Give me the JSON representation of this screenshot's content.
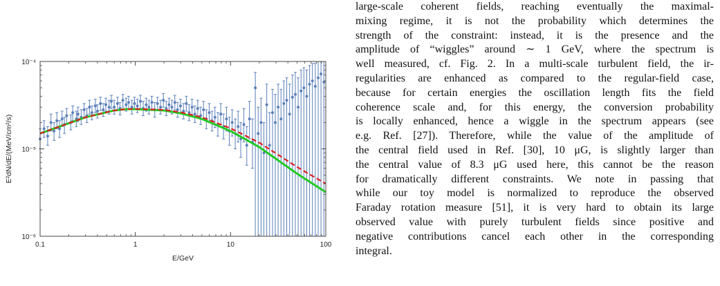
{
  "figure": {
    "chart_data": {
      "type": "scatter",
      "xlabel": "E/GeV",
      "ylabel": "E²dN/dE/(MeV/cm²/s)",
      "xscale": "log",
      "yscale": "log",
      "xlim": [
        0.1,
        100
      ],
      "ylim": [
        1e-06,
        0.0001
      ],
      "x_ticks": [
        0.1,
        1,
        10,
        100
      ],
      "x_tick_labels": [
        "0.1",
        "1",
        "10",
        "100"
      ],
      "y_ticks": [
        1e-06,
        1e-05,
        0.0001
      ],
      "y_tick_labels": [
        "10⁻⁶",
        "10⁻⁵",
        "10⁻⁴"
      ],
      "grid": false,
      "legend": "none",
      "colors": {
        "points": "#5a7fb8",
        "green_curve": "#22c922",
        "red_curve": "#dd2020",
        "axes": "#444444"
      },
      "curves": [
        {
          "style": "solid-green",
          "x": [
            0.1,
            0.3,
            0.6,
            0.8,
            1.0,
            2.0,
            3.0,
            5.0,
            10,
            20,
            50,
            100
          ],
          "y": [
            1.5e-05,
            2.3e-05,
            2.75e-05,
            2.85e-05,
            2.85e-05,
            2.75e-05,
            2.55e-05,
            2.2e-05,
            1.6e-05,
            1.05e-05,
            5.2e-06,
            3.2e-06
          ]
        },
        {
          "style": "dashed-red",
          "x": [
            0.1,
            0.3,
            0.6,
            0.8,
            1.0,
            2.0,
            3.0,
            5.0,
            10,
            20,
            50,
            100
          ],
          "y": [
            1.5e-05,
            2.3e-05,
            2.75e-05,
            2.85e-05,
            2.87e-05,
            2.8e-05,
            2.62e-05,
            2.3e-05,
            1.72e-05,
            1.18e-05,
            6.2e-06,
            4e-06
          ]
        }
      ],
      "points": [
        {
          "x": 0.1,
          "y": 1.3e-05,
          "lo": 1e-05,
          "hi": 1.7e-05
        },
        {
          "x": 0.11,
          "y": 1.7e-05,
          "lo": 1.35e-05,
          "hi": 2.1e-05
        },
        {
          "x": 0.12,
          "y": 1.4e-05,
          "lo": 1.1e-05,
          "hi": 1.8e-05
        },
        {
          "x": 0.13,
          "y": 2e-05,
          "lo": 1.6e-05,
          "hi": 2.5e-05
        },
        {
          "x": 0.14,
          "y": 1.6e-05,
          "lo": 1.25e-05,
          "hi": 2e-05
        },
        {
          "x": 0.15,
          "y": 2.1e-05,
          "lo": 1.7e-05,
          "hi": 2.6e-05
        },
        {
          "x": 0.16,
          "y": 1.7e-05,
          "lo": 1.35e-05,
          "hi": 2.1e-05
        },
        {
          "x": 0.17,
          "y": 2.2e-05,
          "lo": 1.8e-05,
          "hi": 2.7e-05
        },
        {
          "x": 0.18,
          "y": 1.9e-05,
          "lo": 1.5e-05,
          "hi": 2.3e-05
        },
        {
          "x": 0.19,
          "y": 2.4e-05,
          "lo": 1.95e-05,
          "hi": 2.9e-05
        },
        {
          "x": 0.21,
          "y": 2e-05,
          "lo": 1.65e-05,
          "hi": 2.45e-05
        },
        {
          "x": 0.22,
          "y": 2.6e-05,
          "lo": 2.1e-05,
          "hi": 3.1e-05
        },
        {
          "x": 0.24,
          "y": 2.2e-05,
          "lo": 1.8e-05,
          "hi": 2.7e-05
        },
        {
          "x": 0.25,
          "y": 2.5e-05,
          "lo": 2.05e-05,
          "hi": 3e-05
        },
        {
          "x": 0.27,
          "y": 2.3e-05,
          "lo": 1.9e-05,
          "hi": 2.8e-05
        },
        {
          "x": 0.29,
          "y": 2.8e-05,
          "lo": 2.3e-05,
          "hi": 3.3e-05
        },
        {
          "x": 0.31,
          "y": 2.4e-05,
          "lo": 2e-05,
          "hi": 2.9e-05
        },
        {
          "x": 0.33,
          "y": 3e-05,
          "lo": 2.5e-05,
          "hi": 3.6e-05
        },
        {
          "x": 0.35,
          "y": 2.6e-05,
          "lo": 2.15e-05,
          "hi": 3.1e-05
        },
        {
          "x": 0.38,
          "y": 3.1e-05,
          "lo": 2.6e-05,
          "hi": 3.7e-05
        },
        {
          "x": 0.4,
          "y": 2.7e-05,
          "lo": 2.25e-05,
          "hi": 3.2e-05
        },
        {
          "x": 0.43,
          "y": 3.3e-05,
          "lo": 2.75e-05,
          "hi": 3.9e-05
        },
        {
          "x": 0.46,
          "y": 2.8e-05,
          "lo": 2.35e-05,
          "hi": 3.3e-05
        },
        {
          "x": 0.49,
          "y": 3.2e-05,
          "lo": 2.7e-05,
          "hi": 3.8e-05
        },
        {
          "x": 0.53,
          "y": 3e-05,
          "lo": 2.5e-05,
          "hi": 3.6e-05
        },
        {
          "x": 0.56,
          "y": 3.5e-05,
          "lo": 2.9e-05,
          "hi": 4.1e-05
        },
        {
          "x": 0.6,
          "y": 3e-05,
          "lo": 2.5e-05,
          "hi": 3.6e-05
        },
        {
          "x": 0.65,
          "y": 3.3e-05,
          "lo": 2.8e-05,
          "hi": 3.9e-05
        },
        {
          "x": 0.69,
          "y": 2.9e-05,
          "lo": 2.45e-05,
          "hi": 3.4e-05
        },
        {
          "x": 0.74,
          "y": 3.6e-05,
          "lo": 3e-05,
          "hi": 4.2e-05
        },
        {
          "x": 0.8,
          "y": 3.2e-05,
          "lo": 2.7e-05,
          "hi": 3.8e-05
        },
        {
          "x": 0.85,
          "y": 3.4e-05,
          "lo": 2.85e-05,
          "hi": 4e-05
        },
        {
          "x": 0.92,
          "y": 3e-05,
          "lo": 2.5e-05,
          "hi": 3.6e-05
        },
        {
          "x": 0.98,
          "y": 3.3e-05,
          "lo": 2.8e-05,
          "hi": 3.9e-05
        },
        {
          "x": 1.05,
          "y": 3.1e-05,
          "lo": 2.6e-05,
          "hi": 3.7e-05
        },
        {
          "x": 1.13,
          "y": 3.5e-05,
          "lo": 2.9e-05,
          "hi": 4.1e-05
        },
        {
          "x": 1.21,
          "y": 2.9e-05,
          "lo": 2.4e-05,
          "hi": 3.5e-05
        },
        {
          "x": 1.3,
          "y": 3.2e-05,
          "lo": 2.7e-05,
          "hi": 3.8e-05
        },
        {
          "x": 1.39,
          "y": 3e-05,
          "lo": 2.5e-05,
          "hi": 3.6e-05
        },
        {
          "x": 1.49,
          "y": 3.4e-05,
          "lo": 2.8e-05,
          "hi": 4e-05
        },
        {
          "x": 1.6,
          "y": 2.8e-05,
          "lo": 2.3e-05,
          "hi": 3.4e-05
        },
        {
          "x": 1.71,
          "y": 3.3e-05,
          "lo": 2.75e-05,
          "hi": 3.9e-05
        },
        {
          "x": 1.84,
          "y": 3e-05,
          "lo": 2.5e-05,
          "hi": 3.6e-05
        },
        {
          "x": 1.97,
          "y": 3.6e-05,
          "lo": 3e-05,
          "hi": 4.3e-05
        },
        {
          "x": 2.11,
          "y": 2.9e-05,
          "lo": 2.4e-05,
          "hi": 3.5e-05
        },
        {
          "x": 2.26,
          "y": 3.2e-05,
          "lo": 2.65e-05,
          "hi": 3.8e-05
        },
        {
          "x": 2.42,
          "y": 3e-05,
          "lo": 2.5e-05,
          "hi": 3.6e-05
        },
        {
          "x": 2.6,
          "y": 3.4e-05,
          "lo": 2.8e-05,
          "hi": 4.1e-05
        },
        {
          "x": 2.78,
          "y": 2.8e-05,
          "lo": 2.3e-05,
          "hi": 3.4e-05
        },
        {
          "x": 2.98,
          "y": 3.1e-05,
          "lo": 2.55e-05,
          "hi": 3.7e-05
        },
        {
          "x": 3.2,
          "y": 2.7e-05,
          "lo": 2.2e-05,
          "hi": 3.3e-05
        },
        {
          "x": 3.43,
          "y": 3.3e-05,
          "lo": 2.7e-05,
          "hi": 4e-05
        },
        {
          "x": 3.67,
          "y": 2.6e-05,
          "lo": 2.1e-05,
          "hi": 3.2e-05
        },
        {
          "x": 3.94,
          "y": 3e-05,
          "lo": 2.45e-05,
          "hi": 3.7e-05
        },
        {
          "x": 4.22,
          "y": 2.5e-05,
          "lo": 2e-05,
          "hi": 3.1e-05
        },
        {
          "x": 4.52,
          "y": 2.9e-05,
          "lo": 2.35e-05,
          "hi": 3.6e-05
        },
        {
          "x": 4.85,
          "y": 2.4e-05,
          "lo": 1.9e-05,
          "hi": 3e-05
        },
        {
          "x": 5.2,
          "y": 2.8e-05,
          "lo": 2.2e-05,
          "hi": 3.5e-05
        },
        {
          "x": 5.57,
          "y": 2.2e-05,
          "lo": 1.7e-05,
          "hi": 2.8e-05
        },
        {
          "x": 5.97,
          "y": 2.6e-05,
          "lo": 2e-05,
          "hi": 3.3e-05
        },
        {
          "x": 6.4,
          "y": 2.1e-05,
          "lo": 1.6e-05,
          "hi": 2.7e-05
        },
        {
          "x": 6.86,
          "y": 2.3e-05,
          "lo": 1.75e-05,
          "hi": 3e-05
        },
        {
          "x": 7.36,
          "y": 1.9e-05,
          "lo": 1.4e-05,
          "hi": 2.6e-05
        },
        {
          "x": 7.89,
          "y": 2.5e-05,
          "lo": 1.9e-05,
          "hi": 3.3e-05
        },
        {
          "x": 8.45,
          "y": 1.8e-05,
          "lo": 1.3e-05,
          "hi": 2.5e-05
        },
        {
          "x": 9.06,
          "y": 2.2e-05,
          "lo": 1.6e-05,
          "hi": 3e-05
        },
        {
          "x": 9.71,
          "y": 1.6e-05,
          "lo": 1.1e-05,
          "hi": 2.3e-05
        },
        {
          "x": 10.4,
          "y": 2e-05,
          "lo": 1.4e-05,
          "hi": 2.8e-05
        },
        {
          "x": 11.2,
          "y": 1.5e-05,
          "lo": 1e-05,
          "hi": 2.2e-05
        },
        {
          "x": 12.0,
          "y": 1.8e-05,
          "lo": 1.2e-05,
          "hi": 2.7e-05
        },
        {
          "x": 12.8,
          "y": 1.3e-05,
          "lo": 8e-06,
          "hi": 2e-05
        },
        {
          "x": 13.8,
          "y": 1.9e-05,
          "lo": 1.2e-05,
          "hi": 2.9e-05
        },
        {
          "x": 14.8,
          "y": 1.1e-05,
          "lo": 6.5e-06,
          "hi": 1.8e-05
        },
        {
          "x": 15.8,
          "y": 2.2e-05,
          "lo": 1.3e-05,
          "hi": 3.5e-05
        },
        {
          "x": 17.0,
          "y": 1.2e-05,
          "lo": 6e-06,
          "hi": 2.2e-05
        },
        {
          "x": 18.2,
          "y": 5e-05,
          "lo": 1e-06,
          "hi": 7.5e-05
        },
        {
          "x": 19.5,
          "y": 1.5e-05,
          "lo": 1e-06,
          "hi": 3e-05
        },
        {
          "x": 20.9,
          "y": 2e-05,
          "lo": 1e-06,
          "hi": 3.8e-05
        },
        {
          "x": 22.4,
          "y": 9e-06,
          "lo": 1e-06,
          "hi": 2e-05
        },
        {
          "x": 24.0,
          "y": 3.2e-05,
          "lo": 1e-06,
          "hi": 5.5e-05
        },
        {
          "x": 25.7,
          "y": 1.1e-05,
          "lo": 1e-06,
          "hi": 2.6e-05
        },
        {
          "x": 27.6,
          "y": 2.6e-05,
          "lo": 1e-06,
          "hi": 4.8e-05
        },
        {
          "x": 29.5,
          "y": 2e-05,
          "lo": 1e-06,
          "hi": 4.2e-05
        },
        {
          "x": 31.6,
          "y": 3e-05,
          "lo": 1e-06,
          "hi": 5.5e-05
        },
        {
          "x": 33.9,
          "y": 2.2e-05,
          "lo": 1e-06,
          "hi": 4.8e-05
        },
        {
          "x": 36.3,
          "y": 3.3e-05,
          "lo": 1e-06,
          "hi": 6e-05
        },
        {
          "x": 38.9,
          "y": 3.6e-05,
          "lo": 1e-06,
          "hi": 6.5e-05
        },
        {
          "x": 41.7,
          "y": 2.5e-05,
          "lo": 1e-06,
          "hi": 5.5e-05
        },
        {
          "x": 44.7,
          "y": 3.9e-05,
          "lo": 1e-06,
          "hi": 7e-05
        },
        {
          "x": 47.9,
          "y": 4.2e-05,
          "lo": 1e-06,
          "hi": 7.5e-05
        },
        {
          "x": 51.3,
          "y": 3e-05,
          "lo": 1e-06,
          "hi": 6.5e-05
        },
        {
          "x": 55.0,
          "y": 4.6e-05,
          "lo": 1e-06,
          "hi": 8e-05
        },
        {
          "x": 58.9,
          "y": 5e-05,
          "lo": 1e-06,
          "hi": 8.5e-05
        },
        {
          "x": 63.1,
          "y": 4e-05,
          "lo": 1e-06,
          "hi": 8e-05
        },
        {
          "x": 67.6,
          "y": 5.5e-05,
          "lo": 1e-06,
          "hi": 9e-05
        },
        {
          "x": 72.4,
          "y": 6e-05,
          "lo": 1e-06,
          "hi": 9.5e-05
        },
        {
          "x": 77.6,
          "y": 5.2e-05,
          "lo": 1e-06,
          "hi": 9.5e-05
        },
        {
          "x": 83.2,
          "y": 6.5e-05,
          "lo": 1e-06,
          "hi": 0.0001
        },
        {
          "x": 89.1,
          "y": 7.2e-05,
          "lo": 1e-06,
          "hi": 0.0001
        },
        {
          "x": 95.5,
          "y": 5.8e-05,
          "lo": 1e-06,
          "hi": 0.0001
        }
      ]
    }
  },
  "text_column": {
    "lines": [
      "large-scale coherent fields, reaching eventually the maximal-",
      "mixing regime, it is not the probability which determines the",
      "strength of the constraint: instead, it is the presence and the",
      "amplitude of “wiggles” around ∼ 1 GeV, where the spectrum is",
      "well measured, cf. Fig. 2. In a multi-scale turbulent field, the ir-",
      "regularities are enhanced as compared to the regular-field case,",
      "because for certain energies the oscillation length fits the field",
      "coherence scale and, for this energy, the conversion probability",
      "is locally enhanced, hence a wiggle in the spectrum appears (see",
      "e.g. Ref. [27]). Therefore, while the value of the amplitude of",
      "the central field used in Ref. [30], 10 μG, is slightly larger than",
      "the central value of 8.3 μG used here, this cannot be the reason",
      "for dramatically different constraints. We note in passing that",
      "while our toy model is normalized to reproduce the observed",
      "Faraday rotation measure [51], it is very hard to obtain its large",
      "observed value with purely turbulent fields since positive and",
      "negative contributions cancel each other in the corresponding",
      "integral."
    ]
  }
}
